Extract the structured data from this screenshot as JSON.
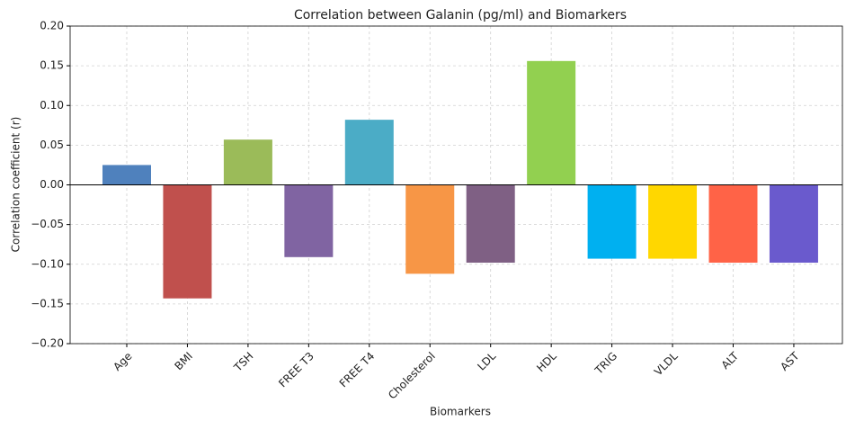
{
  "chart_data": {
    "type": "bar",
    "title": "Correlation between Galanin (pg/ml) and Biomarkers",
    "xlabel": "Biomarkers",
    "ylabel": "Correlation coefficient (r)",
    "categories": [
      "Age",
      "BMI",
      "TSH",
      "FREE T3",
      "FREE T4",
      "Cholesterol",
      "LDL",
      "HDL",
      "TRIG",
      "VLDL",
      "ALT",
      "AST"
    ],
    "values": [
      0.025,
      -0.143,
      0.057,
      -0.091,
      0.082,
      -0.112,
      -0.098,
      0.156,
      -0.093,
      -0.093,
      -0.098,
      -0.098
    ],
    "colors": [
      "#4f81bd",
      "#c0504d",
      "#9bbb59",
      "#8064a2",
      "#4bacc6",
      "#f79646",
      "#7f6084",
      "#92d050",
      "#00b0f0",
      "#ffd700",
      "#ff6347",
      "#6a5acd"
    ],
    "ylim": [
      -0.2,
      0.2
    ],
    "yticks": [
      {
        "value": -0.2,
        "label": "−0.20"
      },
      {
        "value": -0.15,
        "label": "−0.15"
      },
      {
        "value": -0.1,
        "label": "−0.10"
      },
      {
        "value": -0.05,
        "label": "−0.05"
      },
      {
        "value": 0,
        "label": "0.00"
      },
      {
        "value": 0.05,
        "label": "0.05"
      },
      {
        "value": 0.1,
        "label": "0.10"
      },
      {
        "value": 0.15,
        "label": "0.15"
      },
      {
        "value": 0.2,
        "label": "0.20"
      }
    ],
    "grid": true
  }
}
